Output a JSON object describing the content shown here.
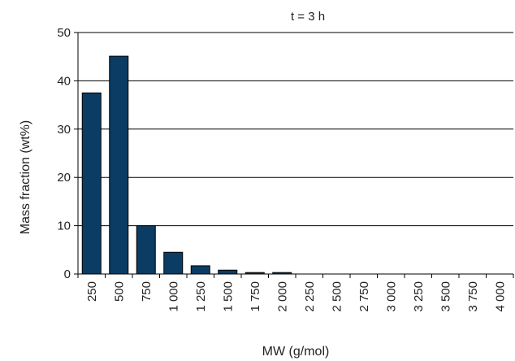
{
  "chart_data": {
    "type": "bar",
    "title": "t = 3 h",
    "xlabel": "MW (g/mol)",
    "ylabel": "Mass fraction (wt%)",
    "categories": [
      "250",
      "500",
      "750",
      "1 000",
      "1 250",
      "1 500",
      "1 750",
      "2 000",
      "2 250",
      "2 500",
      "2 750",
      "3 000",
      "3 250",
      "3 500",
      "3 750",
      "4 000"
    ],
    "values": [
      37.5,
      45.1,
      10.0,
      4.5,
      1.7,
      0.8,
      0.3,
      0.3,
      0,
      0,
      0,
      0,
      0,
      0,
      0,
      0
    ],
    "ylim": [
      0,
      50
    ],
    "yticks": [
      "0",
      "10",
      "20",
      "30",
      "40",
      "50"
    ],
    "grid": "horizontal",
    "bar_color": "#0b3c63"
  }
}
